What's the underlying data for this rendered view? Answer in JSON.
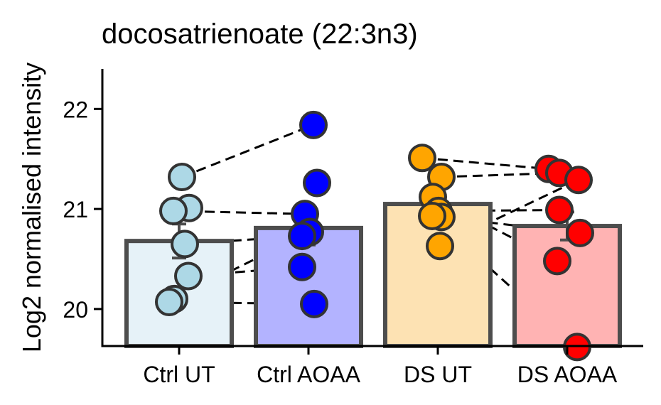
{
  "chart_data": {
    "type": "bar",
    "title": "docosatrienoate (22:3n3)",
    "xlabel": "",
    "ylabel": "Log2 normalised intensity",
    "ylim": [
      19.63,
      22.4
    ],
    "yticks": [
      20,
      21,
      22
    ],
    "grid": false,
    "legend": "none",
    "categories": [
      "Ctrl UT",
      "Ctrl AOAA",
      "DS UT",
      "DS AOAA"
    ],
    "means": [
      20.68,
      20.81,
      21.05,
      20.83
    ],
    "errors": [
      0.17,
      0.17,
      0.11,
      0.14
    ],
    "bar_fill_colors": [
      "#e6f2f8",
      "#b3b3ff",
      "#fde2b3",
      "#ffb3b3"
    ],
    "point_colors": [
      "#add8e6",
      "#0000ff",
      "#ffa500",
      "#ff0000"
    ],
    "bar_outline_color": "#4d4d4d",
    "points": [
      [
        21.32,
        21.01,
        20.98,
        20.65,
        20.33,
        20.1,
        20.07
      ],
      [
        21.84,
        21.26,
        20.95,
        20.77,
        20.73,
        20.42,
        20.05
      ],
      [
        21.51,
        21.32,
        21.12,
        20.98,
        20.92,
        20.93,
        20.63
      ],
      [
        21.4,
        21.36,
        21.29,
        20.99,
        20.76,
        20.48,
        19.62
      ]
    ],
    "pairs": [
      [
        [
          21.32,
          21.84
        ],
        [
          20.98,
          20.95
        ],
        [
          20.65,
          20.73
        ],
        [
          20.33,
          20.42
        ],
        [
          20.1,
          20.77
        ],
        [
          20.07,
          20.05
        ]
      ],
      [
        [
          21.51,
          21.4
        ],
        [
          21.32,
          21.36
        ],
        [
          20.98,
          20.99
        ],
        [
          20.92,
          20.76
        ],
        [
          20.93,
          19.62
        ],
        [
          20.63,
          21.29
        ],
        [
          21.12,
          20.48
        ]
      ]
    ]
  }
}
